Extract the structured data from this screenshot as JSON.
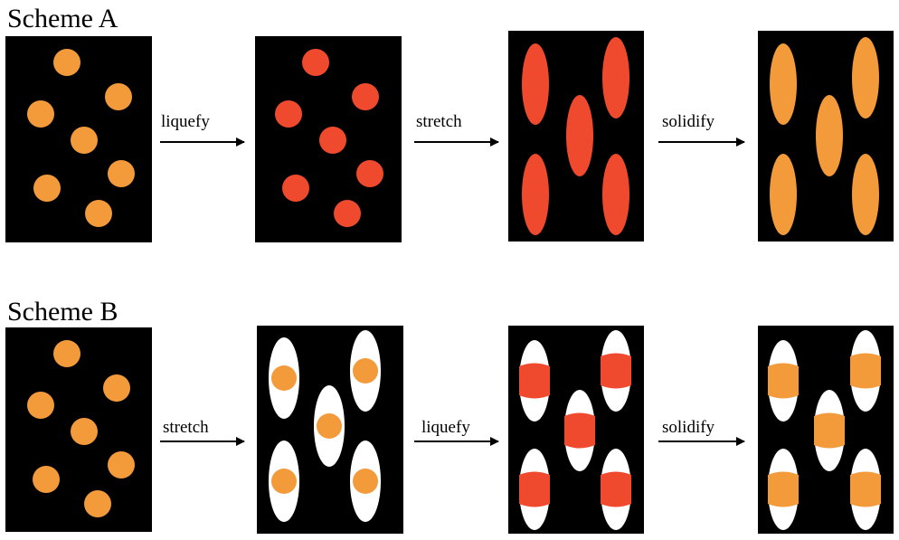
{
  "schemes": [
    {
      "title": "Scheme A",
      "labels": [
        "liquefy",
        "stretch",
        "solidify"
      ]
    },
    {
      "title": "Scheme B",
      "labels": [
        "stretch",
        "liquefy",
        "solidify"
      ]
    }
  ],
  "colors": {
    "panel": "#000000",
    "solid": "#f39a3a",
    "liquid": "#f04a2e",
    "void": "#ffffff"
  }
}
